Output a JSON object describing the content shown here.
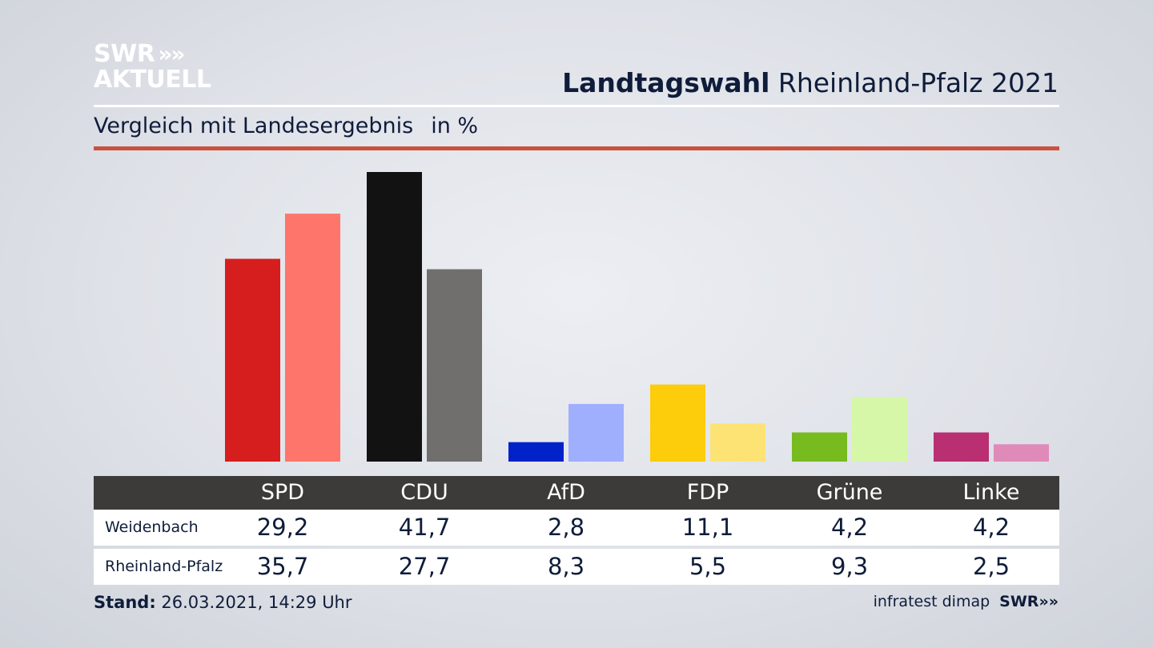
{
  "brand": {
    "logo_line1": "SWR",
    "logo_line2": "AKTUELL",
    "logo_chevrons": "»"
  },
  "header": {
    "title_bold": "Landtagswahl",
    "title_rest": "Rheinland-Pfalz 2021"
  },
  "subtitle": {
    "text": "Vergleich mit Landesergebnis",
    "unit": "in %"
  },
  "chart_data": {
    "type": "bar",
    "categories": [
      "SPD",
      "CDU",
      "AfD",
      "FDP",
      "Grüne",
      "Linke"
    ],
    "series": [
      {
        "name": "Weidenbach",
        "values": [
          29.2,
          41.7,
          2.8,
          11.1,
          4.2,
          4.2
        ]
      },
      {
        "name": "Rheinland-Pfalz",
        "values": [
          35.7,
          27.7,
          8.3,
          5.5,
          9.3,
          2.5
        ]
      }
    ],
    "colors": {
      "Weidenbach": [
        "#d61e1e",
        "#121212",
        "#0022c8",
        "#fdcc0a",
        "#77bb1f",
        "#b92f72"
      ],
      "Rheinland-Pfalz": [
        "#fe756c",
        "#706f6d",
        "#a0aefe",
        "#fde374",
        "#d6f7a8",
        "#e08ab9"
      ]
    },
    "ylim": [
      0,
      45
    ],
    "grid": false,
    "legend": "table-below"
  },
  "table": {
    "rows": [
      {
        "label": "Weidenbach",
        "values": [
          "29,2",
          "41,7",
          "2,8",
          "11,1",
          "4,2",
          "4,2"
        ]
      },
      {
        "label": "Rheinland-Pfalz",
        "values": [
          "35,7",
          "27,7",
          "8,3",
          "5,5",
          "9,3",
          "2,5"
        ]
      }
    ]
  },
  "footer": {
    "stand_label": "Stand:",
    "stand_value": "26.03.2021, 14:29 Uhr",
    "source": "infratest dimap",
    "source_brand": "SWR"
  }
}
